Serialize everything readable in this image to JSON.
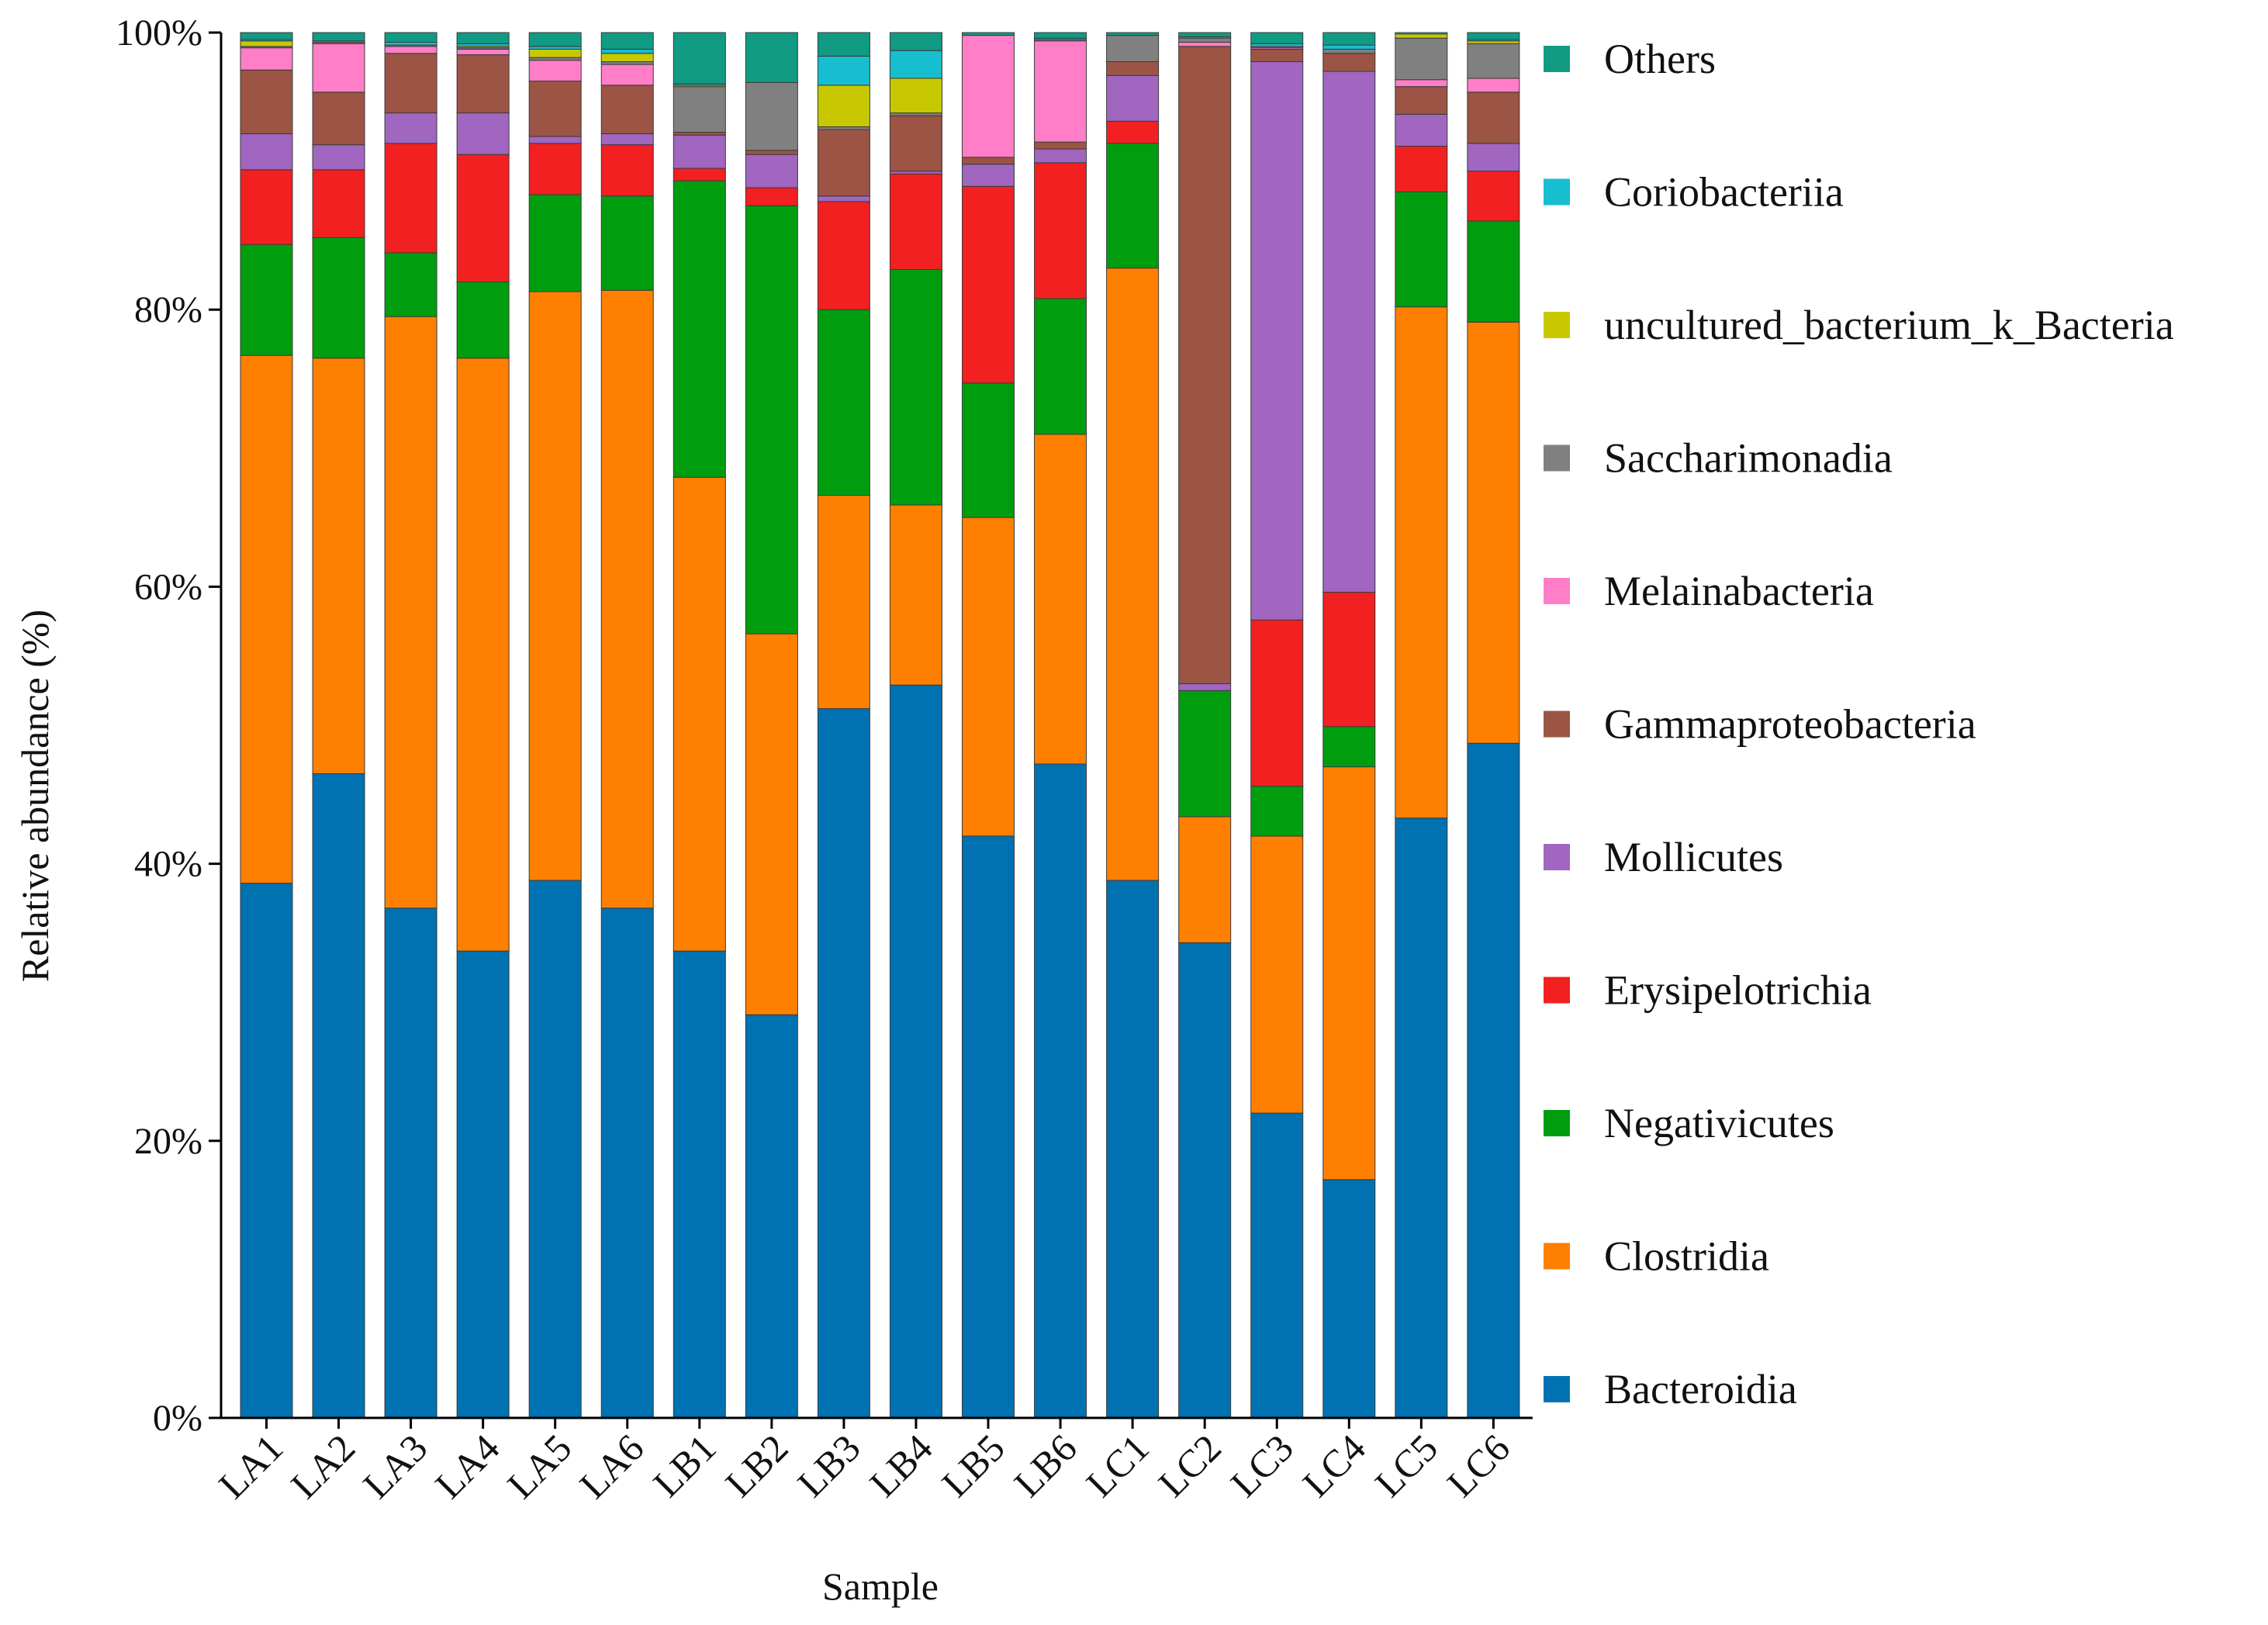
{
  "chart_data": {
    "type": "bar",
    "stacked": true,
    "title": "",
    "xlabel": "Sample",
    "ylabel": "Relative abundance (%)",
    "ylim": [
      0,
      100
    ],
    "y_ticks": [
      "0%",
      "20%",
      "40%",
      "60%",
      "80%",
      "100%"
    ],
    "categories": [
      "LA1",
      "LA2",
      "LA3",
      "LA4",
      "LA5",
      "LA6",
      "LB1",
      "LB2",
      "LB3",
      "LB4",
      "LB5",
      "LB6",
      "LC1",
      "LC2",
      "LC3",
      "LC4",
      "LC5",
      "LC6"
    ],
    "legend_position": "right",
    "series": [
      {
        "name": "Bacteroidia",
        "color": "#0072b2",
        "values": [
          38.6,
          46.5,
          36.8,
          33.7,
          38.8,
          36.8,
          33.7,
          29.1,
          51.2,
          52.9,
          42.0,
          47.2,
          38.8,
          34.3,
          22.0,
          17.2,
          43.3,
          48.7
        ]
      },
      {
        "name": "Clostridia",
        "color": "#ff7f00",
        "values": [
          38.1,
          30.0,
          42.7,
          42.8,
          42.5,
          44.6,
          34.2,
          27.5,
          15.4,
          13.0,
          23.0,
          23.8,
          44.2,
          9.1,
          20.0,
          29.8,
          36.9,
          30.4
        ]
      },
      {
        "name": "Negativicutes",
        "color": "#009e0f",
        "values": [
          8.0,
          8.7,
          4.6,
          5.5,
          7.0,
          6.8,
          21.4,
          30.9,
          13.4,
          17.0,
          9.7,
          9.8,
          9.0,
          9.1,
          3.6,
          2.9,
          8.3,
          7.3
        ]
      },
      {
        "name": "Erysipelotrichia",
        "color": "#f22020",
        "values": [
          5.4,
          4.9,
          7.9,
          9.2,
          3.7,
          3.7,
          0.9,
          1.3,
          7.8,
          6.9,
          14.2,
          9.8,
          1.6,
          0.0,
          12.0,
          9.7,
          3.3,
          3.6
        ]
      },
      {
        "name": "Mollicutes",
        "color": "#a066c0",
        "values": [
          2.6,
          1.8,
          2.2,
          3.0,
          0.5,
          0.8,
          2.4,
          2.4,
          0.4,
          0.2,
          1.6,
          1.0,
          3.3,
          0.5,
          40.3,
          37.6,
          2.3,
          2.0
        ]
      },
      {
        "name": "Gammaproteobacteria",
        "color": "#9c5444",
        "values": [
          4.6,
          3.8,
          4.3,
          4.2,
          4.0,
          3.5,
          0.2,
          0.3,
          4.8,
          4.0,
          0.5,
          0.5,
          1.0,
          46.0,
          0.9,
          1.3,
          2.0,
          3.7
        ]
      },
      {
        "name": "Melainabacteria",
        "color": "#ff7ec7",
        "values": [
          1.6,
          3.5,
          0.5,
          0.4,
          1.5,
          1.5,
          0.0,
          0.0,
          0.0,
          0.0,
          8.8,
          7.3,
          0.0,
          0.3,
          0.1,
          0.0,
          0.5,
          1.0
        ]
      },
      {
        "name": "Saccharimonadia",
        "color": "#808080",
        "values": [
          0.1,
          0.1,
          0.1,
          0.1,
          0.2,
          0.2,
          3.3,
          4.9,
          0.2,
          0.2,
          0.0,
          0.1,
          1.9,
          0.3,
          0.1,
          0.3,
          3.0,
          2.5
        ]
      },
      {
        "name": "uncultured_bacterium_k_Bacteria",
        "color": "#c8c800",
        "values": [
          0.4,
          0.0,
          0.0,
          0.1,
          0.6,
          0.6,
          0.1,
          0.0,
          3.0,
          2.5,
          0.0,
          0.0,
          0.0,
          0.0,
          0.0,
          0.0,
          0.3,
          0.2
        ]
      },
      {
        "name": "Coriobacteriia",
        "color": "#17becf",
        "values": [
          0.1,
          0.1,
          0.2,
          0.2,
          0.2,
          0.3,
          0.1,
          0.0,
          2.1,
          2.0,
          0.0,
          0.1,
          0.0,
          0.1,
          0.2,
          0.3,
          0.1,
          0.1
        ]
      },
      {
        "name": "Others",
        "color": "#119b83",
        "values": [
          0.5,
          0.6,
          0.7,
          0.8,
          1.0,
          1.2,
          3.7,
          3.6,
          1.7,
          1.3,
          0.2,
          0.4,
          0.2,
          0.3,
          0.8,
          0.9,
          0.0,
          0.5
        ]
      }
    ]
  }
}
